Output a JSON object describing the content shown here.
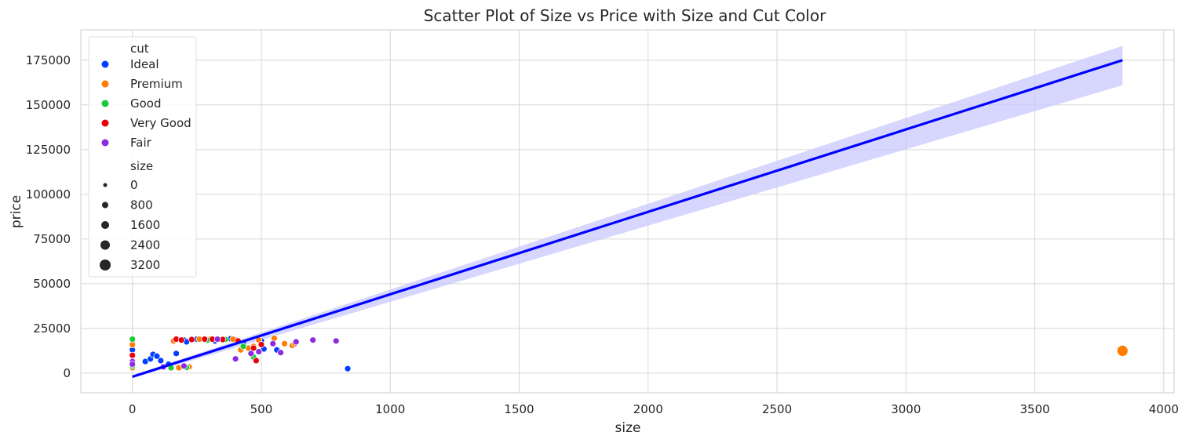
{
  "chart_data": {
    "type": "scatter",
    "title": "Scatter Plot of Size vs Price with Size and Cut Color",
    "xlabel": "size",
    "ylabel": "price",
    "xlim": [
      -200,
      4040
    ],
    "ylim": [
      -11000,
      192000
    ],
    "x_ticks": [
      0,
      500,
      1000,
      1500,
      2000,
      2500,
      3000,
      3500,
      4000
    ],
    "y_ticks": [
      0,
      25000,
      50000,
      75000,
      100000,
      125000,
      150000,
      175000
    ],
    "grid": true,
    "legend": {
      "placement": "upper-left",
      "hue_title": "cut",
      "hue_entries": [
        {
          "label": "Ideal",
          "color": "#023eff"
        },
        {
          "label": "Premium",
          "color": "#ff7c00"
        },
        {
          "label": "Good",
          "color": "#1ac938"
        },
        {
          "label": "Very Good",
          "color": "#e8000b"
        },
        {
          "label": "Fair",
          "color": "#8b2be2"
        }
      ],
      "size_title": "size",
      "size_entries": [
        "0",
        "800",
        "1600",
        "2400",
        "3200"
      ]
    },
    "regression": {
      "color": "#0000ff",
      "band_color": "#c8c8ff",
      "x": [
        0,
        3840
      ],
      "y": [
        -2000,
        175000
      ],
      "ci_upper_end": 183000,
      "ci_lower_end": 161000
    },
    "series": [
      {
        "name": "Ideal",
        "color": "#023eff",
        "x": [
          0,
          0,
          50,
          70,
          80,
          95,
          110,
          140,
          170,
          200,
          210,
          250,
          300,
          320,
          380,
          400,
          430,
          460,
          510,
          560,
          835,
          500
        ],
        "y": [
          13000,
          17000,
          6500,
          8000,
          10500,
          9500,
          7000,
          5000,
          11000,
          18500,
          17500,
          19000,
          19000,
          18000,
          19200,
          18500,
          17000,
          13000,
          13500,
          13000,
          2500,
          18000
        ]
      },
      {
        "name": "Premium",
        "color": "#ff7c00",
        "x": [
          0,
          0,
          180,
          220,
          260,
          300,
          350,
          390,
          420,
          450,
          470,
          490,
          550,
          590,
          620,
          630,
          160,
          3840
        ],
        "y": [
          3000,
          16000,
          3000,
          3500,
          19000,
          19000,
          18500,
          19000,
          13000,
          14000,
          15000,
          18500,
          19500,
          16500,
          15500,
          16500,
          18000,
          12500
        ]
      },
      {
        "name": "Good",
        "color": "#1ac938",
        "x": [
          0,
          0,
          150,
          210,
          290,
          360,
          430,
          470
        ],
        "y": [
          19000,
          4000,
          3000,
          3200,
          18500,
          18800,
          15000,
          9000
        ]
      },
      {
        "name": "Very Good",
        "color": "#e8000b",
        "x": [
          0,
          170,
          190,
          230,
          280,
          310,
          350,
          410,
          470,
          480,
          500
        ],
        "y": [
          10000,
          19000,
          18500,
          18800,
          19000,
          19000,
          18800,
          18000,
          14000,
          7000,
          16000
        ]
      },
      {
        "name": "Fair",
        "color": "#8b2be2",
        "x": [
          0,
          0,
          120,
          200,
          330,
          400,
          460,
          490,
          545,
          575,
          635,
          700,
          790
        ],
        "y": [
          6500,
          5000,
          3500,
          4000,
          19000,
          8000,
          11000,
          12000,
          16500,
          11500,
          17500,
          18500,
          18000
        ]
      }
    ]
  }
}
